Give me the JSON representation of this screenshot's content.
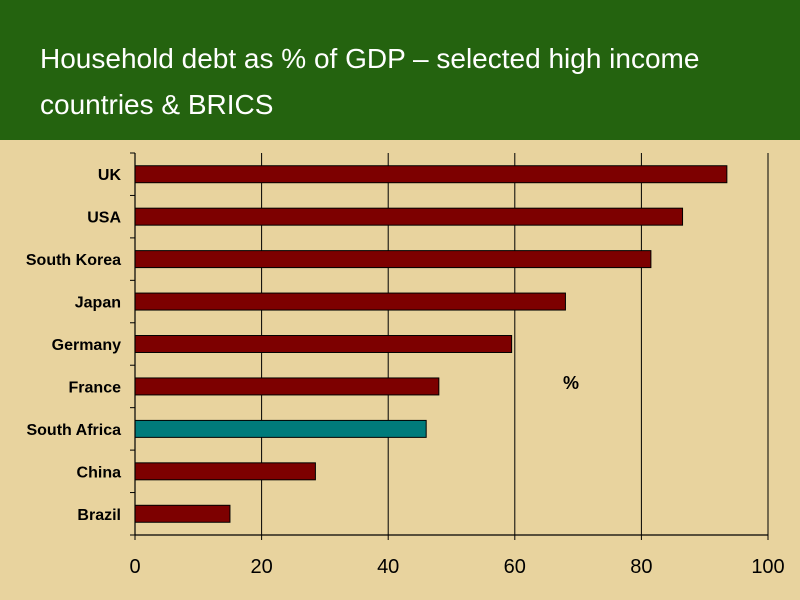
{
  "header": {
    "title": "Household debt as % of GDP – selected high income countries & BRICS"
  },
  "colors": {
    "header_bg": "#24630f",
    "plot_bg": "#e8d39e",
    "bar_default": "#7d0000",
    "bar_highlight": "#007b7b"
  },
  "chart_data": {
    "type": "bar",
    "orientation": "horizontal",
    "title": "Household debt as % of GDP – selected high income countries & BRICS",
    "categories": [
      "UK",
      "USA",
      "South Korea",
      "Japan",
      "Germany",
      "France",
      "South Africa",
      "China",
      "Brazil"
    ],
    "values": [
      93.5,
      86.5,
      81.5,
      68,
      59.5,
      48,
      46,
      28.5,
      15
    ],
    "highlight": "South Africa",
    "xlim": [
      0,
      100
    ],
    "xticks": [
      "0",
      "20",
      "40",
      "60",
      "80",
      "100"
    ],
    "annotation": "%",
    "grid": "vertical",
    "legend": "none"
  }
}
